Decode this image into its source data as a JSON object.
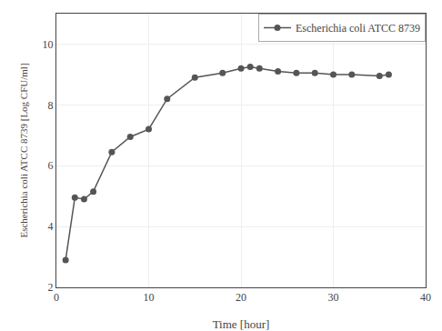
{
  "chart_data": {
    "type": "line",
    "x": [
      1,
      2,
      3,
      4,
      6,
      8,
      10,
      12,
      15,
      18,
      20,
      21,
      22,
      24,
      26,
      28,
      30,
      32,
      35,
      36
    ],
    "series": [
      {
        "name": "Escherichia coli ATCC 8739",
        "color": "#555555",
        "marker": "circle",
        "values": [
          2.9,
          4.95,
          4.9,
          5.15,
          6.45,
          6.95,
          7.2,
          8.2,
          8.9,
          9.05,
          9.2,
          9.25,
          9.2,
          9.1,
          9.05,
          9.05,
          9.0,
          9.0,
          8.95,
          9.0
        ]
      }
    ],
    "x_label": "Time [hour]",
    "y_label": "Escherichia coli ATCC 8739 [Log CFU/ml]",
    "xlim": [
      0,
      40
    ],
    "ylim": [
      2,
      11
    ],
    "xticks": [
      0,
      10,
      20,
      30,
      40
    ],
    "yticks": [
      2,
      4,
      6,
      8,
      10
    ],
    "grid": true,
    "legend": "upper right"
  }
}
